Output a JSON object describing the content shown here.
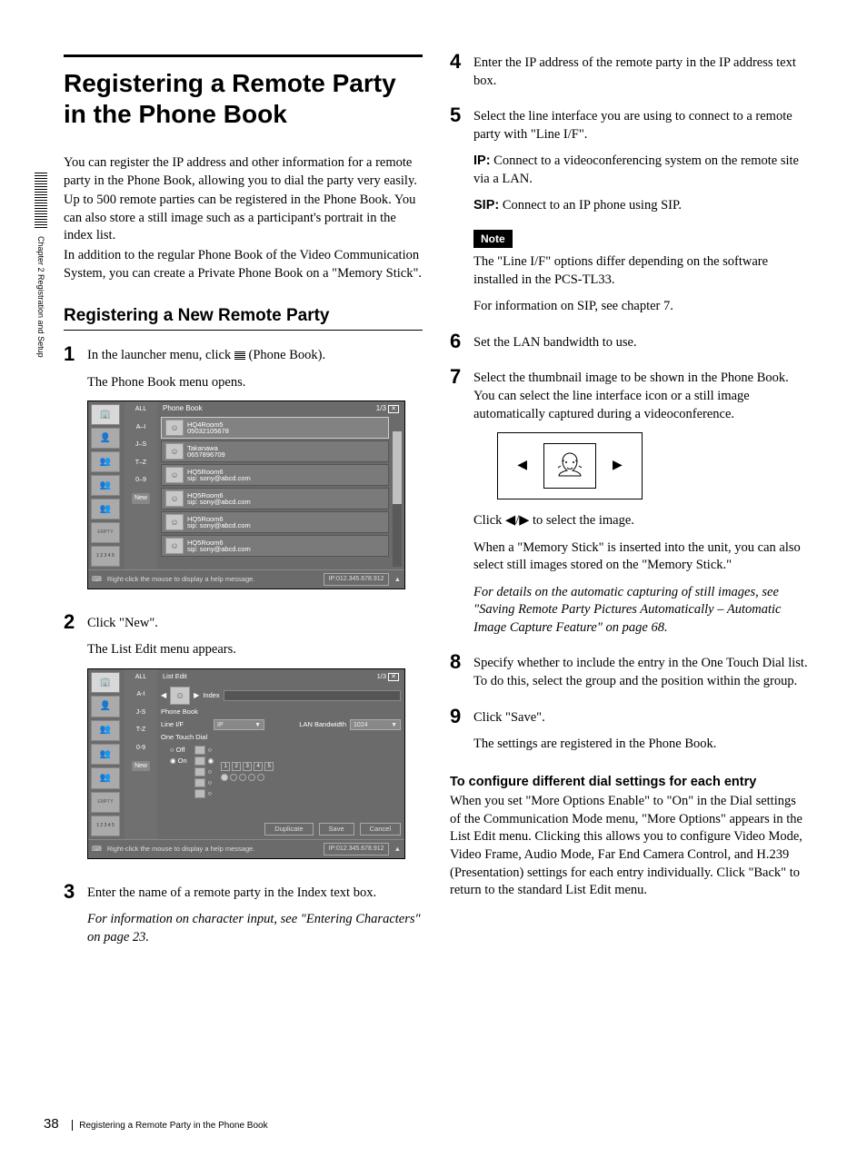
{
  "sidebar": {
    "chapter": "Chapter 2  Registration and Setup"
  },
  "footer": {
    "page": "38",
    "title": "Registering a Remote Party in the Phone Book"
  },
  "left": {
    "h1": "Registering a Remote Party in the Phone Book",
    "intro1": "You can register the IP address and other information for a remote party in the Phone Book, allowing you to dial the party very easily.",
    "intro2": "Up to 500 remote parties can be registered in the Phone Book. You can also store a still image such as a participant's portrait in the index list.",
    "intro3": "In addition to the regular Phone Book of the Video Communication System, you can create a Private Phone Book on a \"Memory Stick\".",
    "h2": "Registering a New Remote Party",
    "step1a": "In the launcher menu, click ",
    "step1b": " (Phone Book).",
    "step1c": "The Phone Book menu opens.",
    "step2a": "Click \"New\".",
    "step2b": "The List Edit menu appears.",
    "step3a": "Enter the name of a remote party in the Index text box.",
    "step3b": "For information on character input, see \"Entering Characters\" on page 23."
  },
  "right": {
    "step4": "Enter the IP address of the remote party in the IP address text box.",
    "step5": "Select the line interface you are using to connect to a remote party with \"Line I/F\".",
    "def_ip_label": "IP:",
    "def_ip": " Connect to a videoconferencing system on the remote site via a LAN.",
    "def_sip_label": "SIP:",
    "def_sip": " Connect to an IP phone using SIP.",
    "note_label": "Note",
    "note1": "The \"Line I/F\" options differ depending on the software installed in the PCS-TL33.",
    "note2": "For information on SIP, see chapter 7.",
    "step6": "Set the LAN bandwidth to use.",
    "step7": "Select the thumbnail image to be shown in the Phone Book. You can select the line interface icon or a still image automatically captured during a videoconference.",
    "click_sel": "Click ◀/▶ to select the image.",
    "memstick": "When a \"Memory Stick\" is inserted into the unit, you can also select still images stored on the \"Memory Stick.\"",
    "ital": "For details on the automatic capturing of still images, see \"Saving Remote Party Pictures Automatically – Automatic Image Capture Feature\" on page 68.",
    "step8": "Specify whether to include the entry in the One Touch Dial list. To do this, select the group and the position within the group.",
    "step9a": "Click \"Save\".",
    "step9b": "The settings are registered in the Phone Book.",
    "subhead": "To configure different dial settings for each entry",
    "subbody": "When you set \"More Options Enable\" to \"On\" in the Dial settings of the Communication Mode menu, \"More Options\" appears in the List Edit menu. Clicking this allows you to configure Video Mode, Video Frame, Audio Mode, Far End Camera Control, and H.239 (Presentation) settings for each entry individually. Click \"Back\" to return to the standard List Edit menu."
  },
  "phonebook_ui": {
    "title": "Phone Book",
    "page": "1/3",
    "filters": [
      "ALL",
      "A–I",
      "J–S",
      "T–Z",
      "0–9",
      "New"
    ],
    "rows": [
      {
        "name": "HQ4Room5",
        "sub": "05032105678",
        "sel": true
      },
      {
        "name": "Takanawa",
        "sub": "0657896709"
      },
      {
        "name": "HQ5Room6",
        "sub": "sip: sony@abcd.com"
      },
      {
        "name": "HQ5Room6",
        "sub": "sip: sony@abcd.com"
      },
      {
        "name": "HQ5Room6",
        "sub": "sip: sony@abcd.com"
      },
      {
        "name": "HQ5Room6",
        "sub": "sip: sony@abcd.com"
      }
    ],
    "help": "Right-click the mouse to display a help message.",
    "ip": "IP:012.345.678.912"
  },
  "listedit_ui": {
    "title": "List Edit",
    "page": "1/3",
    "index_label": "Index",
    "pb_section": "Phone Book",
    "line_label": "Line I/F",
    "line_value": "IP",
    "bw_label": "LAN Bandwidth",
    "bw_value": "1024",
    "ot_label": "One Touch Dial",
    "ot_off": "Off",
    "ot_on": "On",
    "btn_dup": "Duplicate",
    "btn_save": "Save",
    "btn_cancel": "Cancel",
    "help": "Right-click the mouse to display a help message.",
    "ip": "IP:012.345.678.912",
    "filters": [
      "ALL",
      "A-I",
      "J-S",
      "T-Z",
      "0-9",
      "New"
    ]
  }
}
